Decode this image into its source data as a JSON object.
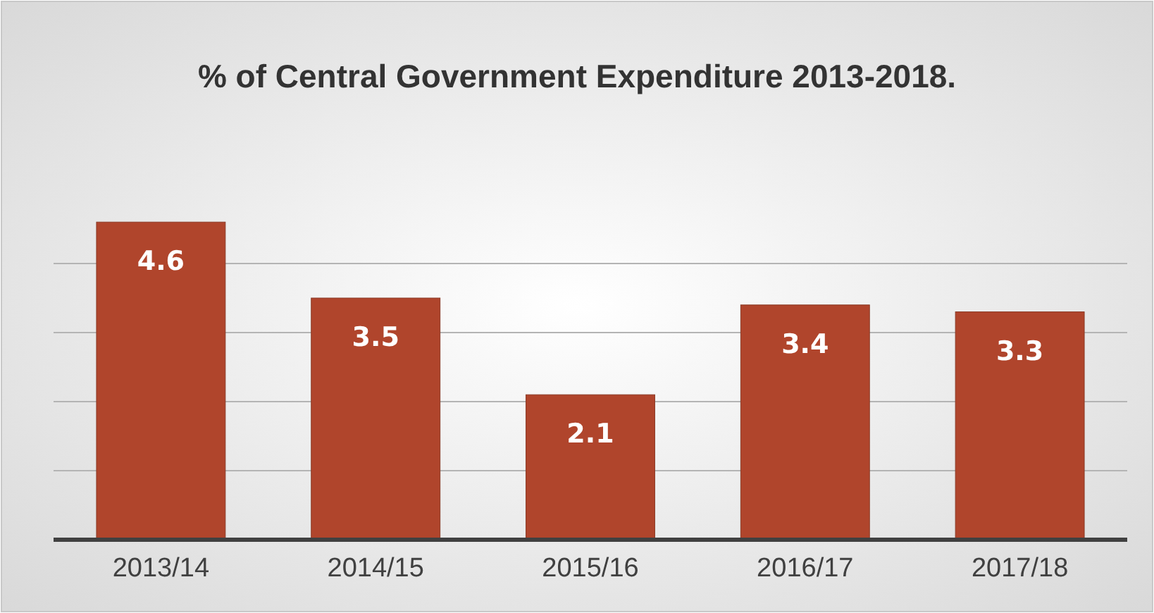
{
  "chart_data": {
    "type": "bar",
    "title": "% of Central Government Expenditure 2013-2018.",
    "categories": [
      "2013/14",
      "2014/15",
      "2015/16",
      "2016/17",
      "2017/18"
    ],
    "values": [
      4.6,
      3.5,
      2.1,
      3.4,
      3.3
    ],
    "color": "#b0452c",
    "yticks": [
      {
        "value": 1,
        "label": null
      },
      {
        "value": 2,
        "label": null
      },
      {
        "value": 3,
        "label": null
      },
      {
        "value": 4,
        "label": null
      }
    ],
    "grid": "y",
    "tick_labels": "x",
    "data_labels": true
  }
}
